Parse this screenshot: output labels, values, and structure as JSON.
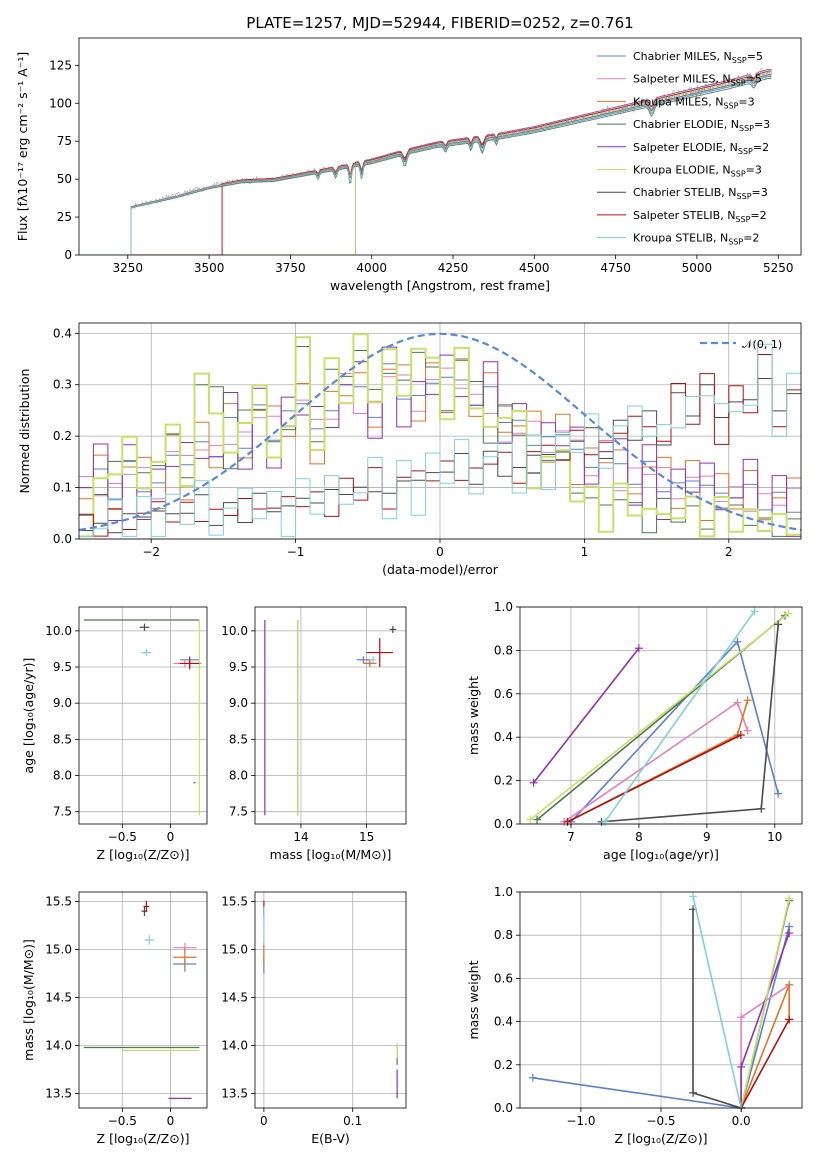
{
  "colors": {
    "Chabrier MILES": "#5b7fd6",
    "Salpeter MILES": "#e57fbf",
    "Kroupa MILES": "#e07426",
    "Chabrier ELODIE": "#4a7a4a",
    "Salpeter ELODIE": "#9230b0",
    "Kroupa ELODIE": "#c8e06a",
    "Chabrier STELIB": "#4a4a4a",
    "Salpeter STELIB": "#b01010",
    "Kroupa STELIB": "#7fd0dd",
    "normal": "#5b88d8"
  },
  "chart_data": [
    {
      "id": "spectrum",
      "type": "line",
      "title": "PLATE=1257, MJD=52944, FIBERID=0252, z=0.761",
      "xlabel": "wavelength [Angstrom, rest frame]",
      "ylabel": "Flux [fλ10⁻¹⁷ erg cm⁻² s⁻¹ A⁻¹]",
      "xlim": [
        3100,
        5320
      ],
      "ylim": [
        0,
        143
      ],
      "xticks": [
        3250,
        3500,
        3750,
        4000,
        4250,
        4500,
        4750,
        5000,
        5250
      ],
      "yticks": [
        0,
        25,
        50,
        75,
        100,
        125
      ],
      "grid": false,
      "legend_position": "top-right",
      "data_x": [
        3260,
        3400,
        3500,
        3600,
        3700,
        3800,
        3900,
        4000,
        4100,
        4200,
        4300,
        4400,
        4500,
        4600,
        4700,
        4800,
        4900,
        5000,
        5100,
        5220
      ],
      "data_y": [
        32,
        39,
        45,
        49,
        50,
        54,
        58,
        62,
        68,
        73,
        76,
        79,
        83,
        88,
        93,
        98,
        103,
        108,
        113,
        120
      ],
      "series": [
        {
          "name": "Chabrier MILES, N_SSP=5",
          "label_main": "Chabrier MILES, N",
          "label_sub": "SSP",
          "label_tail": "=5",
          "start": 3260
        },
        {
          "name": "Salpeter MILES, N_SSP=5",
          "label_main": "Salpeter MILES, N",
          "label_sub": "SSP",
          "label_tail": "=5",
          "start": 3260
        },
        {
          "name": "Kroupa MILES, N_SSP=3",
          "label_main": "Kroupa MILES, N",
          "label_sub": "SSP",
          "label_tail": "=3",
          "start": 3540
        },
        {
          "name": "Chabrier ELODIE, N_SSP=3",
          "label_main": "Chabrier ELODIE, N",
          "label_sub": "SSP",
          "label_tail": "=3",
          "start": 3260
        },
        {
          "name": "Salpeter ELODIE, N_SSP=2",
          "label_main": "Salpeter ELODIE, N",
          "label_sub": "SSP",
          "label_tail": "=2",
          "start": 3950
        },
        {
          "name": "Kroupa ELODIE, N_SSP=3",
          "label_main": "Kroupa ELODIE, N",
          "label_sub": "SSP",
          "label_tail": "=3",
          "start": 3950
        },
        {
          "name": "Chabrier STELIB, N_SSP=3",
          "label_main": "Chabrier STELIB, N",
          "label_sub": "SSP",
          "label_tail": "=3",
          "start": 3260
        },
        {
          "name": "Salpeter STELIB, N_SSP=2",
          "label_main": "Salpeter STELIB, N",
          "label_sub": "SSP",
          "label_tail": "=2",
          "start": 3540
        },
        {
          "name": "Kroupa STELIB, N_SSP=2",
          "label_main": "Kroupa STELIB, N",
          "label_sub": "SSP",
          "label_tail": "=2",
          "start": 3260
        }
      ]
    },
    {
      "id": "residuals",
      "type": "line",
      "xlabel": "(data-model)/error",
      "ylabel": "Normed distribution",
      "xlim": [
        -2.5,
        2.5
      ],
      "ylim": [
        0,
        0.42
      ],
      "xticks": [
        -2,
        -1,
        0,
        1,
        2
      ],
      "yticks": [
        0.0,
        0.1,
        0.2,
        0.3,
        0.4
      ],
      "grid": true,
      "legend_position": "top-right",
      "legend": "𝒩(0, 1)",
      "bins": [
        -2.5,
        -2.4,
        -2.3,
        -2.2,
        -2.1,
        -2.0,
        -1.9,
        -1.8,
        -1.7,
        -1.6,
        -1.5,
        -1.4,
        -1.3,
        -1.2,
        -1.1,
        -1.0,
        -0.9,
        -0.8,
        -0.7,
        -0.6,
        -0.5,
        -0.4,
        -0.3,
        -0.2,
        -0.1,
        0.0,
        0.1,
        0.2,
        0.3,
        0.4,
        0.5,
        0.6,
        0.7,
        0.8,
        0.9,
        1.0,
        1.1,
        1.2,
        1.3,
        1.4,
        1.5,
        1.6,
        1.7,
        1.8,
        1.9,
        2.0,
        2.1,
        2.2,
        2.3,
        2.4
      ],
      "groups": [
        {
          "series": [
            "Chabrier MILES",
            "Salpeter MILES",
            "Kroupa MILES",
            "Salpeter ELODIE"
          ],
          "values": [
            0.1,
            0.12,
            0.09,
            0.14,
            0.11,
            0.1,
            0.17,
            0.13,
            0.2,
            0.16,
            0.22,
            0.19,
            0.25,
            0.21,
            0.24,
            0.27,
            0.2,
            0.26,
            0.3,
            0.28,
            0.25,
            0.33,
            0.29,
            0.27,
            0.31,
            0.3,
            0.32,
            0.26,
            0.28,
            0.24,
            0.22,
            0.2,
            0.19,
            0.21,
            0.16,
            0.15,
            0.17,
            0.13,
            0.12,
            0.14,
            0.11,
            0.1,
            0.12,
            0.09,
            0.1,
            0.08,
            0.09,
            0.07,
            0.08,
            0.07
          ]
        },
        {
          "series": [
            "Chabrier ELODIE",
            "Kroupa ELODIE"
          ],
          "values": [
            0.03,
            0.1,
            0.14,
            0.17,
            0.12,
            0.15,
            0.19,
            0.13,
            0.3,
            0.28,
            0.15,
            0.24,
            0.27,
            0.18,
            0.22,
            0.36,
            0.2,
            0.33,
            0.3,
            0.38,
            0.28,
            0.34,
            0.3,
            0.37,
            0.32,
            0.26,
            0.35,
            0.29,
            0.2,
            0.25,
            0.22,
            0.12,
            0.16,
            0.14,
            0.1,
            0.08,
            0.05,
            0.09,
            0.06,
            0.03,
            0.07,
            0.04,
            0.05,
            0.03,
            0.06,
            0.05,
            0.04,
            0.03,
            0.02,
            0.03
          ]
        },
        {
          "series": [
            "Chabrier STELIB",
            "Salpeter STELIB",
            "Kroupa STELIB"
          ],
          "values": [
            0.03,
            0.02,
            0.03,
            0.04,
            0.05,
            0.04,
            0.06,
            0.05,
            0.07,
            0.04,
            0.06,
            0.05,
            0.08,
            0.06,
            0.05,
            0.09,
            0.07,
            0.08,
            0.1,
            0.09,
            0.11,
            0.08,
            0.12,
            0.1,
            0.14,
            0.13,
            0.15,
            0.12,
            0.16,
            0.14,
            0.13,
            0.17,
            0.15,
            0.18,
            0.19,
            0.2,
            0.17,
            0.22,
            0.21,
            0.24,
            0.19,
            0.27,
            0.25,
            0.3,
            0.22,
            0.28,
            0.26,
            0.33,
            0.24,
            0.29
          ]
        }
      ]
    },
    {
      "id": "age-vs-Z",
      "type": "scatter",
      "xlabel": "Z [log₁₀(Z/Z⊙)]",
      "ylabel": "age  [log₁₀(age/yr)]",
      "xlim": [
        -0.95,
        0.38
      ],
      "ylim": [
        7.33,
        10.33
      ],
      "xticks": [
        -0.5,
        0.0
      ],
      "yticks": [
        7.5,
        8.0,
        8.5,
        9.0,
        9.5,
        10.0
      ],
      "grid": true,
      "points": [
        {
          "series": "Chabrier MILES",
          "x": 0.2,
          "xerr": 0.1,
          "y": 9.6,
          "yerr": 0.05
        },
        {
          "series": "Salpeter MILES",
          "x": 0.15,
          "xerr": 0.12,
          "y": 9.55,
          "yerr": 0.05
        },
        {
          "series": "Kroupa MILES",
          "x": 0.2,
          "xerr": 0.12,
          "y": 9.55,
          "yerr": 0.05
        },
        {
          "series": "Chabrier ELODIE",
          "x": -0.3,
          "xerr": 0.6,
          "y": 10.15,
          "yerr": 0.0
        },
        {
          "series": "Salpeter ELODIE",
          "x": 0.25,
          "xerr": 0.01,
          "y": 7.9,
          "yerr": 0.0
        },
        {
          "series": "Kroupa ELODIE",
          "x": 0.3,
          "xerr": 0.01,
          "y": 8.8,
          "yerr": 1.35
        },
        {
          "series": "Chabrier STELIB",
          "x": -0.27,
          "xerr": 0.05,
          "y": 10.05,
          "yerr": 0.05
        },
        {
          "series": "Salpeter STELIB",
          "x": 0.2,
          "xerr": 0.1,
          "y": 9.55,
          "yerr": 0.08
        },
        {
          "series": "Kroupa STELIB",
          "x": -0.25,
          "xerr": 0.05,
          "y": 9.7,
          "yerr": 0.05
        }
      ]
    },
    {
      "id": "age-vs-mass",
      "type": "scatter",
      "xlabel": "mass [log₁₀(M/M⊙)]",
      "ylabel": "",
      "xlim": [
        13.3,
        15.6
      ],
      "ylim": [
        7.33,
        10.33
      ],
      "xticks": [
        14,
        15
      ],
      "yticks": [
        7.5,
        8.0,
        8.5,
        9.0,
        9.5,
        10.0
      ],
      "grid": true,
      "points": [
        {
          "series": "Chabrier MILES",
          "x": 14.95,
          "xerr": 0.1,
          "y": 9.6,
          "yerr": 0.05
        },
        {
          "series": "Salpeter MILES",
          "x": 15.05,
          "xerr": 0.1,
          "y": 9.55,
          "yerr": 0.05
        },
        {
          "series": "Kroupa MILES",
          "x": 15.05,
          "xerr": 0.1,
          "y": 9.55,
          "yerr": 0.05
        },
        {
          "series": "Chabrier ELODIE",
          "x": 13.95,
          "xerr": 0.0,
          "y": 8.8,
          "yerr": 1.35
        },
        {
          "series": "Salpeter ELODIE",
          "x": 13.45,
          "xerr": 0.0,
          "y": 8.8,
          "yerr": 1.35
        },
        {
          "series": "Kroupa ELODIE",
          "x": 13.95,
          "xerr": 0.0,
          "y": 8.8,
          "yerr": 1.35
        },
        {
          "series": "Chabrier STELIB",
          "x": 15.4,
          "xerr": 0.05,
          "y": 10.02,
          "yerr": 0.05
        },
        {
          "series": "Salpeter STELIB",
          "x": 15.2,
          "xerr": 0.2,
          "y": 9.7,
          "yerr": 0.2
        },
        {
          "series": "Kroupa STELIB",
          "x": 15.1,
          "xerr": 0.05,
          "y": 9.6,
          "yerr": 0.05
        }
      ]
    },
    {
      "id": "weight-vs-age",
      "type": "line",
      "xlabel": "age  [log₁₀(age/yr)]",
      "ylabel": "mass weight",
      "xlim": [
        6.25,
        10.4
      ],
      "ylim": [
        0,
        1
      ],
      "xticks": [
        7,
        8,
        9,
        10
      ],
      "yticks": [
        0.0,
        0.2,
        0.4,
        0.6,
        0.8,
        1.0
      ],
      "grid": true,
      "series": [
        {
          "name": "Chabrier MILES",
          "x": [
            7.0,
            9.45,
            10.05
          ],
          "y": [
            0.01,
            0.84,
            0.14
          ]
        },
        {
          "name": "Salpeter MILES",
          "x": [
            6.9,
            9.45,
            9.6
          ],
          "y": [
            0.01,
            0.56,
            0.43
          ]
        },
        {
          "name": "Kroupa MILES",
          "x": [
            6.95,
            9.45,
            9.6
          ],
          "y": [
            0.01,
            0.41,
            0.57
          ]
        },
        {
          "name": "Chabrier ELODIE",
          "x": [
            6.5,
            10.15
          ],
          "y": [
            0.02,
            0.96
          ]
        },
        {
          "name": "Salpeter ELODIE",
          "x": [
            6.45,
            8.0
          ],
          "y": [
            0.19,
            0.81
          ]
        },
        {
          "name": "Kroupa ELODIE",
          "x": [
            6.4,
            10.2
          ],
          "y": [
            0.02,
            0.97
          ]
        },
        {
          "name": "Chabrier STELIB",
          "x": [
            7.45,
            9.8,
            10.05
          ],
          "y": [
            0.01,
            0.07,
            0.92
          ]
        },
        {
          "name": "Salpeter STELIB",
          "x": [
            6.95,
            9.5
          ],
          "y": [
            0.01,
            0.41
          ]
        },
        {
          "name": "Kroupa STELIB",
          "x": [
            7.5,
            9.7
          ],
          "y": [
            0.01,
            0.98
          ]
        }
      ]
    },
    {
      "id": "mass-vs-Z",
      "type": "scatter",
      "xlabel": "Z [log₁₀(Z/Z⊙)]",
      "ylabel": "mass [log₁₀(M/M⊙)]",
      "xlim": [
        -0.95,
        0.38
      ],
      "ylim": [
        13.35,
        15.6
      ],
      "xticks": [
        -0.5,
        0.0
      ],
      "yticks": [
        13.5,
        14.0,
        14.5,
        15.0,
        15.5
      ],
      "grid": true,
      "points": [
        {
          "series": "Chabrier MILES",
          "x": 0.15,
          "xerr": 0.12,
          "y": 14.85,
          "yerr": 0.08
        },
        {
          "series": "Salpeter MILES",
          "x": 0.15,
          "xerr": 0.12,
          "y": 15.02,
          "yerr": 0.05
        },
        {
          "series": "Kroupa MILES",
          "x": 0.15,
          "xerr": 0.12,
          "y": 14.92,
          "yerr": 0.1
        },
        {
          "series": "Chabrier ELODIE",
          "x": -0.3,
          "xerr": 0.6,
          "y": 13.98,
          "yerr": 0.0
        },
        {
          "series": "Salpeter ELODIE",
          "x": 0.1,
          "xerr": 0.12,
          "y": 13.45,
          "yerr": 0.0
        },
        {
          "series": "Kroupa ELODIE",
          "x": -0.1,
          "xerr": 0.4,
          "y": 13.95,
          "yerr": 0.0
        },
        {
          "series": "Chabrier STELIB",
          "x": -0.27,
          "xerr": 0.03,
          "y": 15.4,
          "yerr": 0.05
        },
        {
          "series": "Salpeter STELIB",
          "x": -0.25,
          "xerr": 0.03,
          "y": 15.45,
          "yerr": 0.06
        },
        {
          "series": "Kroupa STELIB",
          "x": -0.22,
          "xerr": 0.05,
          "y": 15.1,
          "yerr": 0.05
        }
      ]
    },
    {
      "id": "mass-vs-ebv",
      "type": "scatter",
      "xlabel": "E(B-V)",
      "ylabel": "",
      "xlim": [
        -0.01,
        0.16
      ],
      "ylim": [
        13.35,
        15.6
      ],
      "xticks": [
        0.0,
        0.1
      ],
      "yticks": [
        13.5,
        14.0,
        14.5,
        15.0,
        15.5
      ],
      "grid": true,
      "points": [
        {
          "series": "Chabrier MILES",
          "x": 0.0,
          "xerr": 0.0,
          "y": 14.85,
          "yerr": 0.1
        },
        {
          "series": "Salpeter MILES",
          "x": 0.0,
          "xerr": 0.0,
          "y": 15.02,
          "yerr": 0.05
        },
        {
          "series": "Kroupa MILES",
          "x": 0.0,
          "xerr": 0.0,
          "y": 14.95,
          "yerr": 0.12
        },
        {
          "series": "Chabrier ELODIE",
          "x": 0.15,
          "xerr": 0.0,
          "y": 13.9,
          "yerr": 0.1
        },
        {
          "series": "Salpeter ELODIE",
          "x": 0.15,
          "xerr": 0.0,
          "y": 13.6,
          "yerr": 0.15
        },
        {
          "series": "Kroupa ELODIE",
          "x": 0.15,
          "xerr": 0.0,
          "y": 13.95,
          "yerr": 0.08
        },
        {
          "series": "Chabrier STELIB",
          "x": 0.0,
          "xerr": 0.0,
          "y": 15.4,
          "yerr": 0.05
        },
        {
          "series": "Salpeter STELIB",
          "x": 0.0,
          "xerr": 0.0,
          "y": 15.45,
          "yerr": 0.06
        },
        {
          "series": "Kroupa STELIB",
          "x": 0.0,
          "xerr": 0.0,
          "y": 15.25,
          "yerr": 0.2
        }
      ]
    },
    {
      "id": "weight-vs-Z",
      "type": "line",
      "xlabel": "Z [log₁₀(Z/Z⊙)]",
      "ylabel": "mass weight",
      "xlim": [
        -1.38,
        0.38
      ],
      "ylim": [
        0,
        1
      ],
      "xticks": [
        -1.0,
        -0.5,
        0.0
      ],
      "yticks": [
        0.0,
        0.2,
        0.4,
        0.6,
        0.8,
        1.0
      ],
      "grid": true,
      "series": [
        {
          "name": "Chabrier MILES",
          "x": [
            -1.3,
            0.0,
            0.3
          ],
          "y": [
            0.14,
            0.0,
            0.84
          ]
        },
        {
          "name": "Salpeter MILES",
          "x": [
            0.0,
            0.0,
            0.3
          ],
          "y": [
            0.0,
            0.42,
            0.57
          ]
        },
        {
          "name": "Kroupa MILES",
          "x": [
            0.0,
            0.3,
            0.3
          ],
          "y": [
            0.0,
            0.57,
            0.41
          ]
        },
        {
          "name": "Chabrier ELODIE",
          "x": [
            0.0,
            0.3
          ],
          "y": [
            0.0,
            0.96
          ]
        },
        {
          "name": "Salpeter ELODIE",
          "x": [
            0.0,
            0.0,
            0.3
          ],
          "y": [
            0.0,
            0.19,
            0.81
          ]
        },
        {
          "name": "Kroupa ELODIE",
          "x": [
            0.0,
            0.3
          ],
          "y": [
            0.0,
            0.97
          ]
        },
        {
          "name": "Chabrier STELIB",
          "x": [
            0.0,
            -0.3,
            -0.3
          ],
          "y": [
            0.0,
            0.07,
            0.92
          ]
        },
        {
          "name": "Salpeter STELIB",
          "x": [
            0.0,
            0.3
          ],
          "y": [
            0.0,
            0.41
          ]
        },
        {
          "name": "Kroupa STELIB",
          "x": [
            0.0,
            -0.3
          ],
          "y": [
            0.0,
            0.98
          ]
        }
      ]
    }
  ]
}
